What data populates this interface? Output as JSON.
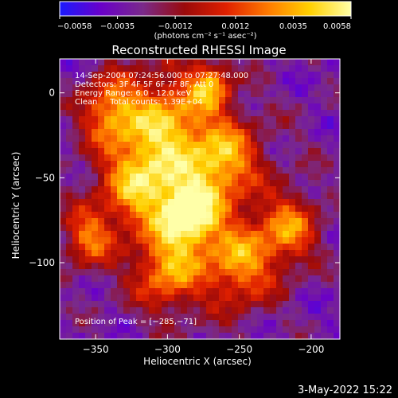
{
  "chart_data": {
    "type": "heatmap",
    "title": "Reconstructed RHESSI Image",
    "xlabel": "Heliocentric X (arcsec)",
    "ylabel": "Heliocentric Y (arcsec)",
    "xlim": [
      -375,
      -180
    ],
    "ylim": [
      -145,
      20
    ],
    "x_ticks": [
      -350,
      -300,
      -250,
      -200
    ],
    "x_tick_labels": [
      "−350",
      "−300",
      "−250",
      "−200"
    ],
    "y_ticks": [
      0,
      -50,
      -100
    ],
    "y_tick_labels": [
      "0",
      "−50",
      "−100"
    ],
    "colorbar": {
      "range": [
        -0.0058,
        0.0058
      ],
      "ticks": [
        -0.0058,
        -0.0035,
        -0.0012,
        0.0012,
        0.0035,
        0.0058
      ],
      "tick_labels": [
        "−0.0058",
        "−0.0035",
        "−0.0012",
        "0.0012",
        "0.0035",
        "0.0058"
      ],
      "unit_label": "(photons cm⁻² s⁻¹ asec⁻²)",
      "colormap": [
        "#1a1aff",
        "#6a00c8",
        "#7a2a8a",
        "#9a0a0a",
        "#e02000",
        "#ff7a00",
        "#ffd000",
        "#ffffa8"
      ]
    },
    "annotations": [
      "14-Sep-2004 07:24:56.000 to 07:27:48.000",
      "Detectors: 3F 4F 5F 6F 7F 8F, Att 0",
      "Energy Range: 6.0 - 12.0 keV",
      "Clean     Total counts: 1.39E+04"
    ],
    "peak_label": "Position of Peak = [−285,−71]",
    "peak": {
      "x": -285,
      "y": -71,
      "value": 0.0058
    },
    "bright_regions": [
      {
        "x": -285,
        "y": -71,
        "sigma": 14,
        "value": 0.0058
      },
      {
        "x": -300,
        "y": -20,
        "sigma": 22,
        "value": 0.003
      },
      {
        "x": -320,
        "y": -55,
        "sigma": 18,
        "value": 0.0025
      },
      {
        "x": -260,
        "y": -40,
        "sigma": 16,
        "value": 0.0026
      },
      {
        "x": -340,
        "y": -10,
        "sigma": 14,
        "value": 0.0022
      },
      {
        "x": -250,
        "y": -100,
        "sigma": 18,
        "value": 0.0024
      },
      {
        "x": -300,
        "y": -105,
        "sigma": 16,
        "value": 0.0022
      },
      {
        "x": -215,
        "y": -80,
        "sigma": 14,
        "value": 0.0018
      },
      {
        "x": -355,
        "y": -85,
        "sigma": 12,
        "value": 0.0016
      },
      {
        "x": -270,
        "y": 5,
        "sigma": 10,
        "value": 0.002
      }
    ]
  },
  "timestamp": "3-May-2022 15:22"
}
